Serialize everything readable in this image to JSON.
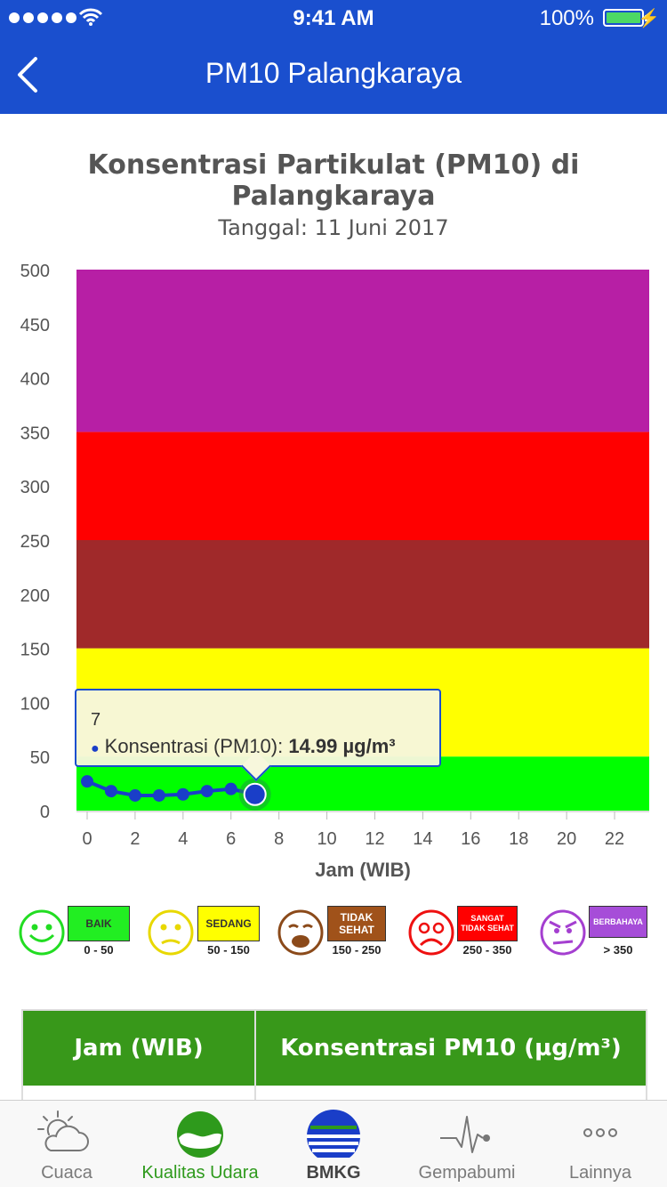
{
  "status_bar": {
    "time": "9:41 AM",
    "battery": "100%"
  },
  "nav": {
    "title": "PM10 Palangkaraya"
  },
  "chart_data": {
    "type": "line",
    "title": "Konsentrasi Partikulat (PM10) di Palangkaraya",
    "subtitle": "Tanggal: 11 Juni 2017",
    "xlabel": "Jam (WIB)",
    "ylabel": "",
    "xlim": [
      0,
      23
    ],
    "ylim": [
      0,
      500
    ],
    "x_ticks": [
      "0",
      "2",
      "4",
      "6",
      "8",
      "10",
      "12",
      "14",
      "16",
      "18",
      "20",
      "22"
    ],
    "y_ticks": [
      "0",
      "50",
      "100",
      "150",
      "200",
      "250",
      "300",
      "350",
      "400",
      "450",
      "500"
    ],
    "bands": [
      {
        "from": 0,
        "to": 50,
        "color": "#00ff00"
      },
      {
        "from": 50,
        "to": 150,
        "color": "#ffff00"
      },
      {
        "from": 150,
        "to": 250,
        "color": "#a0292a"
      },
      {
        "from": 250,
        "to": 350,
        "color": "#ff0000"
      },
      {
        "from": 350,
        "to": 500,
        "color": "#b71fa5"
      }
    ],
    "series": [
      {
        "name": "Konsentrasi (PM10)",
        "color": "#1a3ec8",
        "x": [
          0,
          1,
          2,
          3,
          4,
          5,
          6,
          7
        ],
        "values": [
          27,
          18,
          14,
          14,
          15,
          18,
          20,
          14.99
        ]
      }
    ],
    "tooltip": {
      "x": "7",
      "label": "Konsentrasi (PM10):",
      "value": "14.99 µg/m³"
    },
    "highlight_index": 7
  },
  "legend": [
    {
      "label": "BAIK",
      "range": "0 - 50",
      "color": "#22ee22",
      "face_color": "#22dd22",
      "face": "happy"
    },
    {
      "label": "SEDANG",
      "range": "50 - 150",
      "color": "#ffff00",
      "face_color": "#e8d800",
      "face": "neutral"
    },
    {
      "label": "TIDAK SEHAT",
      "range": "150 - 250",
      "color": "#a0521a",
      "face_color": "#8b4a1a",
      "face": "sad"
    },
    {
      "label": "SANGAT TIDAK SEHAT",
      "range": "250 - 350",
      "color": "#ff0000",
      "face_color": "#ee1111",
      "face": "very-sad"
    },
    {
      "label": "BERBAHAYA",
      "range": "> 350",
      "color": "#a64dd8",
      "face_color": "#a43fd0",
      "face": "angry"
    }
  ],
  "table": {
    "col1": "Jam (WIB)",
    "col2": "Konsentrasi PM10 (µg/m³)"
  },
  "tabs": [
    {
      "label": "Cuaca",
      "icon": "weather-icon"
    },
    {
      "label": "Kualitas Udara",
      "icon": "air-quality-icon"
    },
    {
      "label": "BMKG",
      "icon": "bmkg-logo-icon"
    },
    {
      "label": "Gempabumi",
      "icon": "earthquake-icon"
    },
    {
      "label": "Lainnya",
      "icon": "more-icon"
    }
  ],
  "colors": {
    "primary": "#1a4fce",
    "table_header": "#38981a",
    "tab_active": "#2e9a1c"
  }
}
